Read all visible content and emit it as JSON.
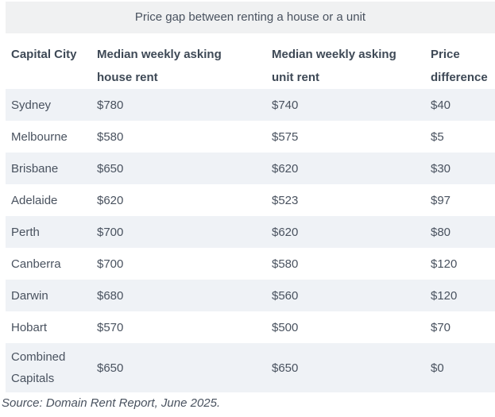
{
  "colors": {
    "title_band_bg": "#f0f1f2",
    "shaded_row_bg": "#eff2f6",
    "text": "#49525f",
    "header_text": "#3e4956"
  },
  "chart_data": {
    "type": "table",
    "title": "Price gap between renting a house or a unit",
    "columns": [
      "Capital City",
      "Median weekly asking house rent",
      "Median weekly asking unit rent",
      "Price difference"
    ],
    "rows": [
      [
        "Sydney",
        "$780",
        "$740",
        "$40"
      ],
      [
        "Melbourne",
        "$580",
        "$575",
        "$5"
      ],
      [
        "Brisbane",
        "$650",
        "$620",
        "$30"
      ],
      [
        "Adelaide",
        "$620",
        "$523",
        "$97"
      ],
      [
        "Perth",
        "$700",
        "$620",
        "$80"
      ],
      [
        "Canberra",
        "$700",
        "$580",
        "$120"
      ],
      [
        "Darwin",
        "$680",
        "$560",
        "$120"
      ],
      [
        "Hobart",
        "$570",
        "$500",
        "$70"
      ],
      [
        "Combined Capitals",
        "$650",
        "$650",
        "$0"
      ]
    ],
    "source": "Source: Domain Rent Report, June 2025.",
    "layout": {
      "zebra_shaded_row_indexes": [
        0,
        2,
        4,
        6,
        8
      ],
      "legend": "none",
      "grid": "off"
    }
  }
}
